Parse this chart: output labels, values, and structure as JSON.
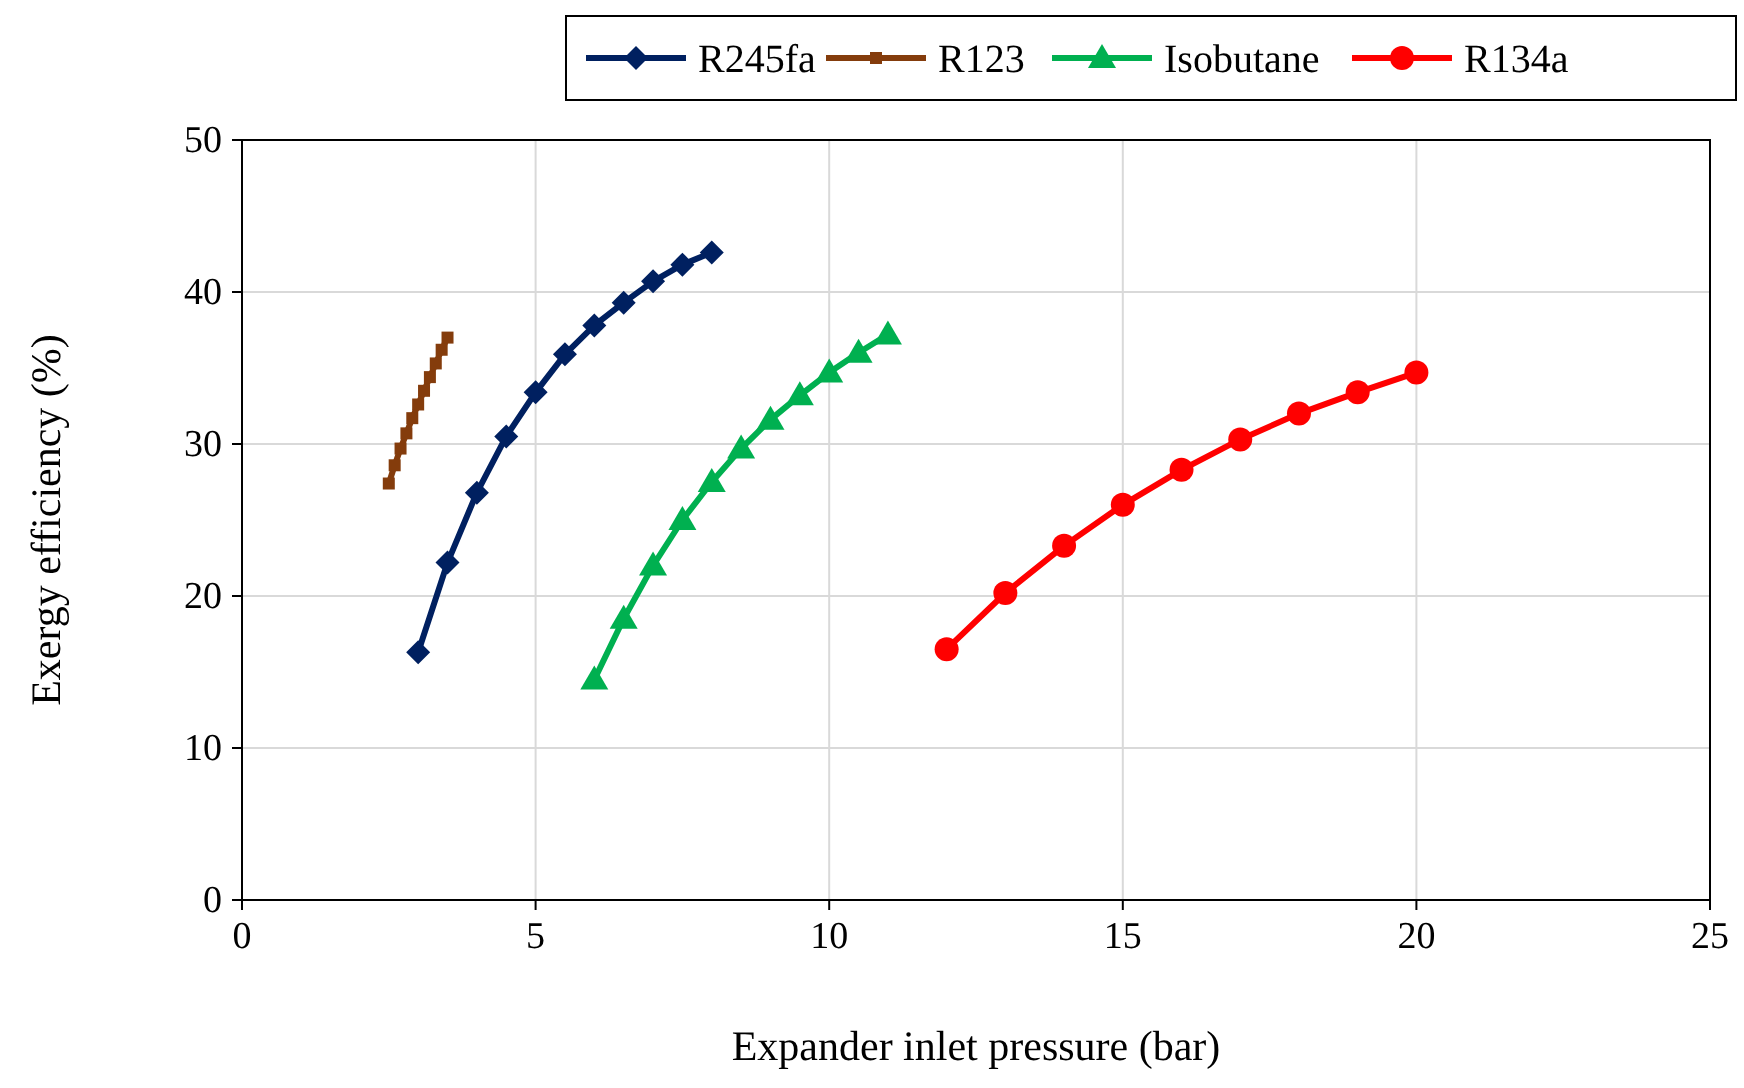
{
  "chart_data": {
    "type": "line",
    "xlabel": "Expander inlet pressure (bar)",
    "ylabel": "Exergy efficiency (%)",
    "xlim": [
      0,
      25
    ],
    "xticks": [
      0,
      5,
      10,
      15,
      20,
      25
    ],
    "ylim": [
      0,
      50
    ],
    "yticks": [
      0,
      10,
      20,
      30,
      40,
      50
    ],
    "grid": true,
    "legend": "top right",
    "line_style": "solid",
    "series": [
      {
        "name": "R245fa",
        "color": "#002060",
        "marker": "diamond",
        "x": [
          3,
          3.5,
          4,
          4.5,
          5,
          5.5,
          6,
          6.5,
          7,
          7.5,
          8
        ],
        "values": [
          16.3,
          22.2,
          26.8,
          30.5,
          33.4,
          35.9,
          37.8,
          39.3,
          40.7,
          41.8,
          42.6
        ]
      },
      {
        "name": "R123",
        "color": "#843c0c",
        "marker": "square",
        "x": [
          2.5,
          2.6,
          2.7,
          2.8,
          2.9,
          3,
          3.1,
          3.2,
          3.3,
          3.4,
          3.5
        ],
        "values": [
          27.4,
          28.6,
          29.7,
          30.7,
          31.7,
          32.6,
          33.5,
          34.4,
          35.3,
          36.2,
          37
        ]
      },
      {
        "name": "Isobutane",
        "color": "#00b050",
        "marker": "triangle",
        "x": [
          6,
          6.5,
          7,
          7.5,
          8,
          8.5,
          9,
          9.5,
          10,
          10.5,
          11
        ],
        "values": [
          14.5,
          18.5,
          22,
          25,
          27.5,
          29.7,
          31.6,
          33.2,
          34.7,
          36,
          37.2
        ]
      },
      {
        "name": "R134a",
        "color": "#ff0000",
        "marker": "circle",
        "x": [
          12,
          13,
          14,
          15,
          16,
          17,
          18,
          19,
          20
        ],
        "values": [
          16.5,
          20.2,
          23.3,
          26,
          28.3,
          30.3,
          32,
          33.4,
          34.7
        ]
      }
    ]
  }
}
